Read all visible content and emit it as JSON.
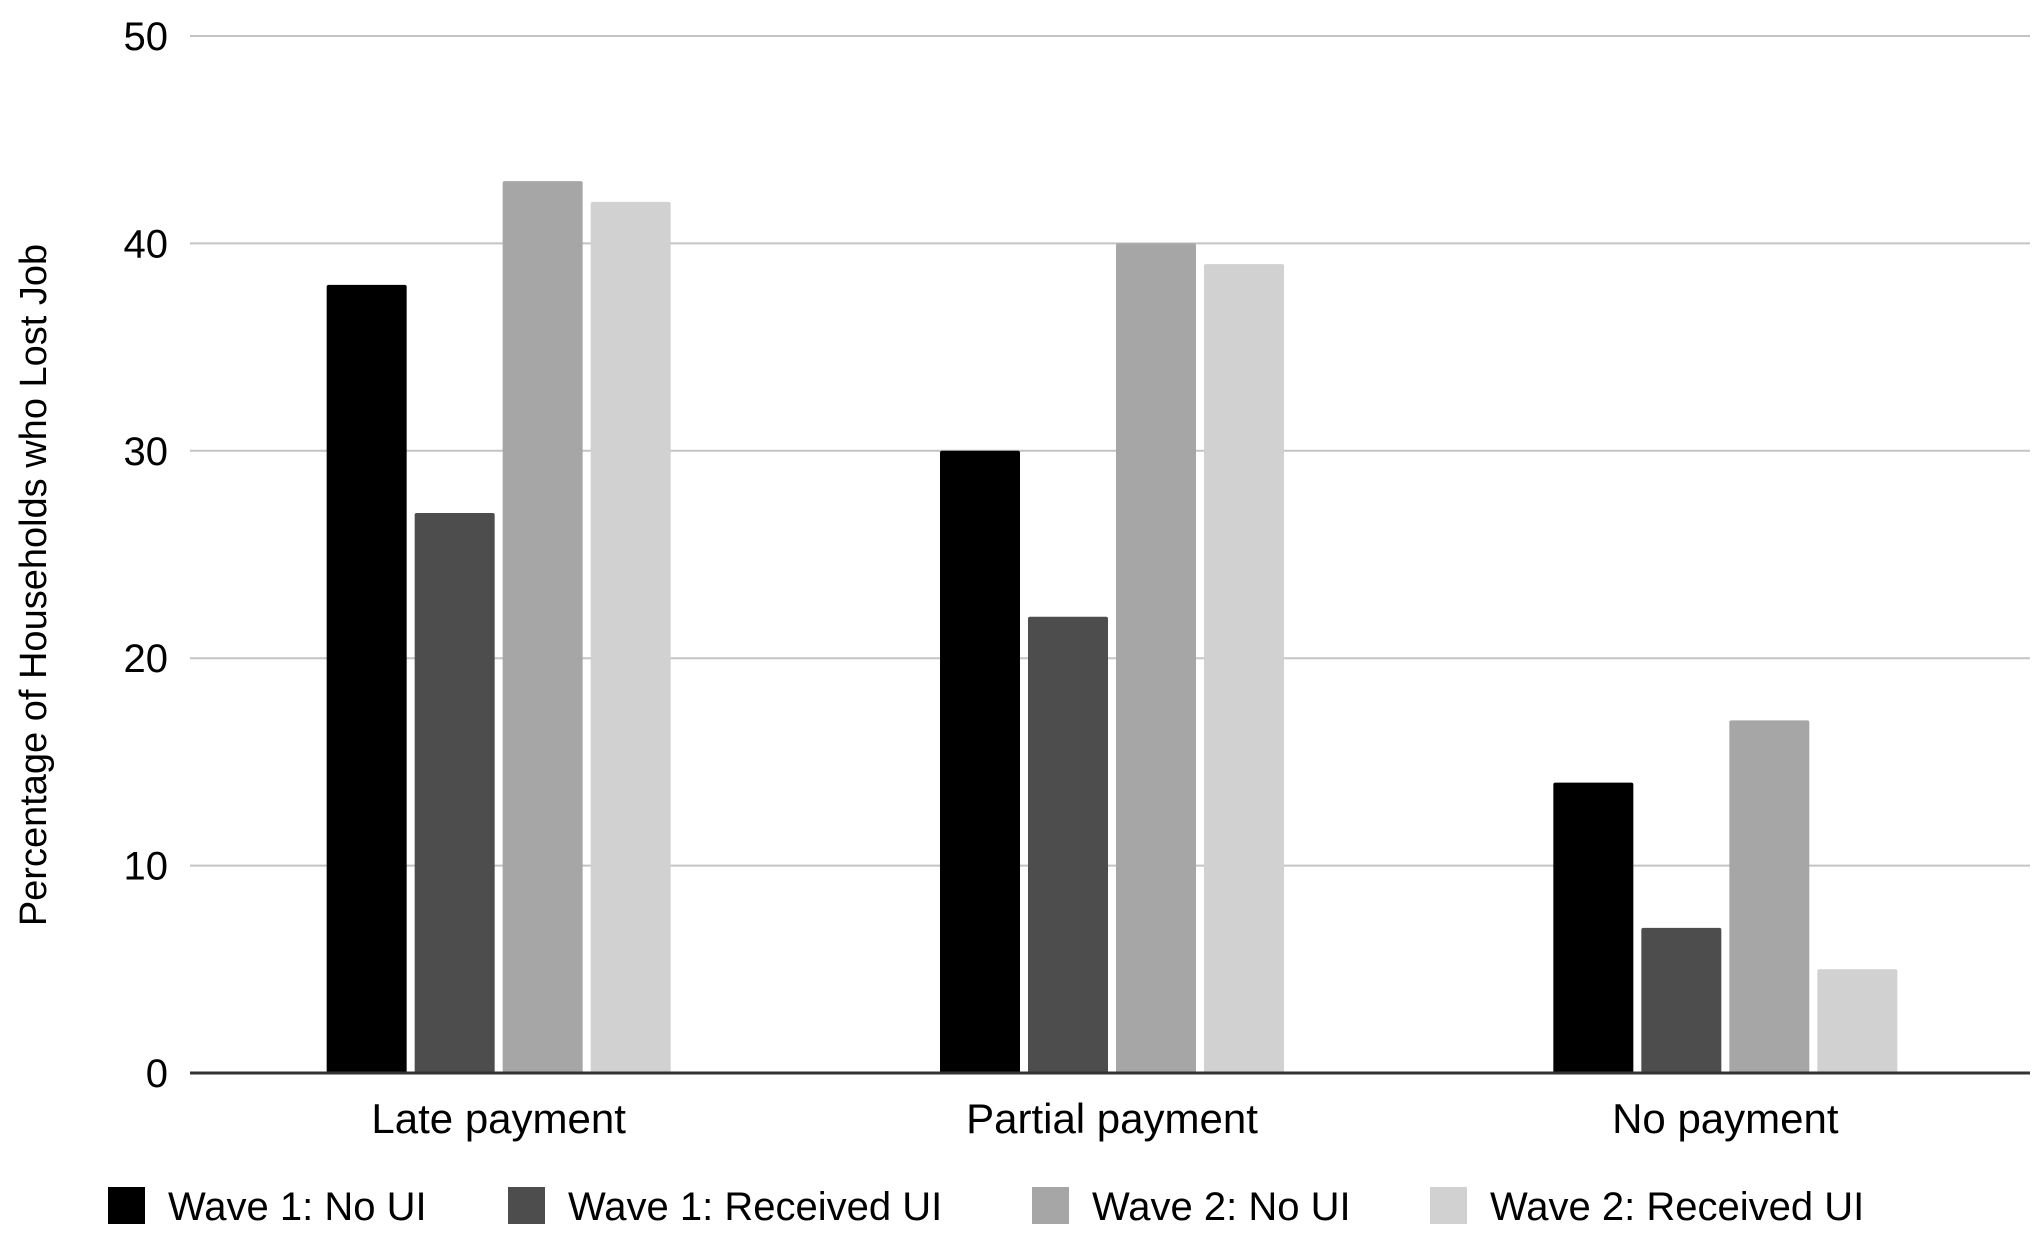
{
  "chart_data": {
    "type": "bar",
    "title": "",
    "xlabel": "",
    "ylabel": "Percentage of Households who Lost Job",
    "categories": [
      "Late payment",
      "Partial payment",
      "No payment"
    ],
    "series": [
      {
        "name": "Wave 1: No UI",
        "color": "#000000",
        "values": [
          38,
          30,
          14
        ]
      },
      {
        "name": "Wave 1: Received UI",
        "color": "#4d4d4d",
        "values": [
          27,
          22,
          7
        ]
      },
      {
        "name": "Wave 2: No UI",
        "color": "#a6a6a6",
        "values": [
          43,
          40,
          17
        ]
      },
      {
        "name": "Wave 2: Received UI",
        "color": "#d1d1d1",
        "values": [
          42,
          39,
          5
        ]
      }
    ],
    "ylim": [
      0,
      50
    ],
    "yticks": [
      0,
      10,
      20,
      30,
      40,
      50
    ],
    "grid": true,
    "legend_position": "bottom"
  }
}
